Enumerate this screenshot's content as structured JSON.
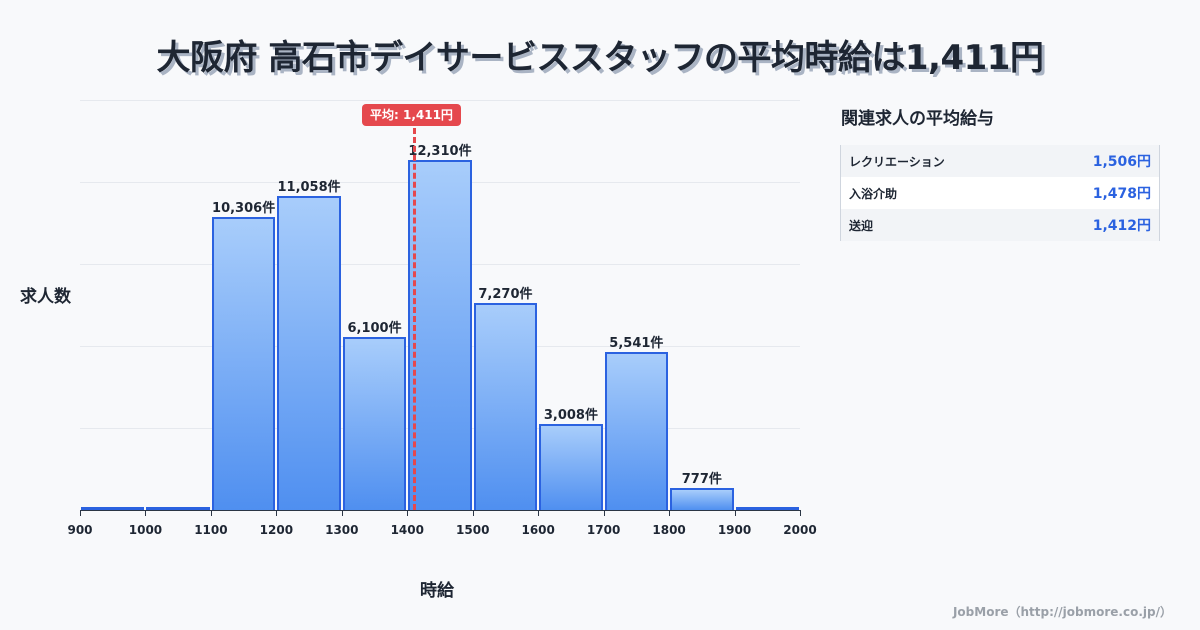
{
  "title": "大阪府 高石市デイサービススタッフの平均時給は1,411円",
  "chart_data": {
    "type": "bar",
    "title": "大阪府 高石市デイサービススタッフの平均時給は1,411円",
    "xlabel": "時給",
    "ylabel": "求人数",
    "categories": [
      "900-1000",
      "1000-1100",
      "1100-1200",
      "1200-1300",
      "1300-1400",
      "1400-1500",
      "1500-1600",
      "1600-1700",
      "1700-1800",
      "1800-1900",
      "1900-2000"
    ],
    "values": [
      0,
      0,
      10306,
      11058,
      6100,
      12310,
      7270,
      3008,
      5541,
      777,
      0
    ],
    "value_labels": [
      "",
      "",
      "10,306件",
      "11,058件",
      "6,100件",
      "12,310件",
      "7,270件",
      "3,008件",
      "5,541件",
      "777件",
      ""
    ],
    "x_ticks": [
      "900",
      "1000",
      "1100",
      "1200",
      "1300",
      "1400",
      "1500",
      "1600",
      "1700",
      "1800",
      "1900",
      "2000"
    ],
    "ylim": [
      0,
      12310
    ],
    "grid": true,
    "annotation": {
      "label": "平均: 1,411円",
      "x": 1411
    }
  },
  "sidebar": {
    "title": "関連求人の平均給与",
    "items": [
      {
        "name": "レクリエーション",
        "value": "1,506円"
      },
      {
        "name": "入浴介助",
        "value": "1,478円"
      },
      {
        "name": "送迎",
        "value": "1,412円"
      }
    ]
  },
  "footer": "JobMore（http://jobmore.co.jp/）",
  "colors": {
    "bar_top": "#a8cdfb",
    "bar_bottom": "#4f8ff0",
    "bar_border": "#2b62e0",
    "avg_line": "#e5484d",
    "side_value": "#2b62e0"
  }
}
